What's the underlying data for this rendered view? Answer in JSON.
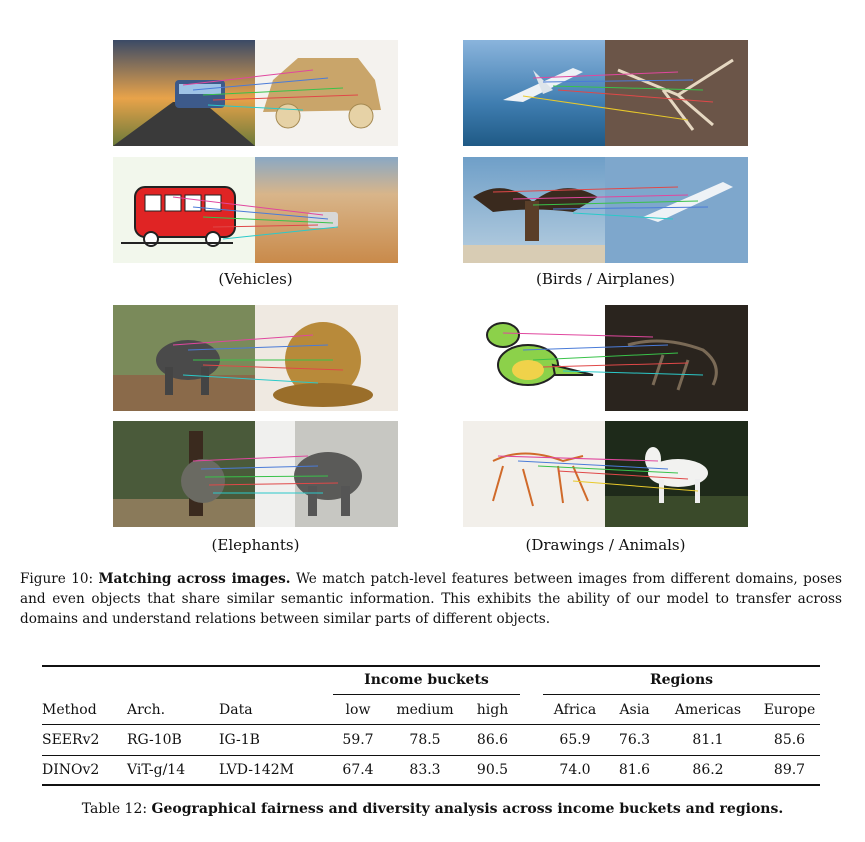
{
  "figure": {
    "groups": [
      {
        "label": "(Vehicles)"
      },
      {
        "label": "(Birds / Airplanes)"
      },
      {
        "label": "(Elephants)"
      },
      {
        "label": "(Drawings / Animals)"
      }
    ],
    "caption_number": "Figure 10:",
    "caption_title": "Matching across images.",
    "caption_body": "We match patch-level features between images from different domains, poses and even objects that share similar semantic information. This exhibits the ability of our model to transfer across domains and understand relations between similar parts of different objects."
  },
  "table": {
    "group_headers": {
      "income": "Income buckets",
      "regions": "Regions"
    },
    "columns": [
      "Method",
      "Arch.",
      "Data",
      "low",
      "medium",
      "high",
      "Africa",
      "Asia",
      "Americas",
      "Europe"
    ],
    "rows": [
      {
        "method": "SEERv2",
        "arch": "RG-10B",
        "data": "IG-1B",
        "low": "59.7",
        "medium": "78.5",
        "high": "86.6",
        "africa": "65.9",
        "asia": "76.3",
        "americas": "81.1",
        "europe": "85.6"
      },
      {
        "method": "DINOv2",
        "arch": "ViT-g/14",
        "data": "LVD-142M",
        "low": "67.4",
        "medium": "83.3",
        "high": "90.5",
        "africa": "74.0",
        "asia": "81.6",
        "americas": "86.2",
        "europe": "89.7"
      }
    ],
    "caption_number": "Table 12:",
    "caption_title": "Geographical fairness and diversity analysis across income buckets and regions."
  }
}
